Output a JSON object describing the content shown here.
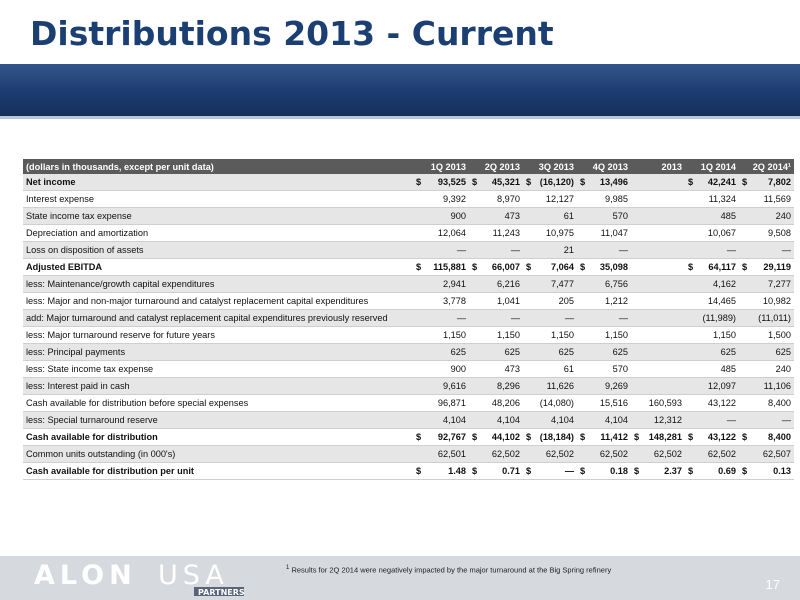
{
  "title": "Distributions 2013 - Current",
  "table": {
    "header": [
      "(dollars in thousands, except per unit data)",
      "1Q 2013",
      "2Q 2013",
      "3Q 2013",
      "4Q 2013",
      "2013",
      "1Q 2014",
      "2Q 2014¹"
    ],
    "rows": [
      {
        "label": "Net income",
        "bold": true,
        "dollar": true,
        "cells": [
          "93,525",
          "45,321",
          "(16,120)",
          "13,496",
          "",
          "42,241",
          "7,802"
        ]
      },
      {
        "label": "Interest expense",
        "cells": [
          "9,392",
          "8,970",
          "12,127",
          "9,985",
          "",
          "11,324",
          "11,569"
        ]
      },
      {
        "label": "State income tax expense",
        "cells": [
          "900",
          "473",
          "61",
          "570",
          "",
          "485",
          "240"
        ]
      },
      {
        "label": "Depreciation and amortization",
        "cells": [
          "12,064",
          "11,243",
          "10,975",
          "11,047",
          "",
          "10,067",
          "9,508"
        ]
      },
      {
        "label": "Loss on disposition of assets",
        "cells": [
          "—",
          "—",
          "21",
          "—",
          "",
          "—",
          "—"
        ]
      },
      {
        "label": "Adjusted EBITDA",
        "bold": true,
        "dollar": true,
        "cells": [
          "115,881",
          "66,007",
          "7,064",
          "35,098",
          "",
          "64,117",
          "29,119"
        ]
      },
      {
        "label": "less: Maintenance/growth capital expenditures",
        "cells": [
          "2,941",
          "6,216",
          "7,477",
          "6,756",
          "",
          "4,162",
          "7,277"
        ]
      },
      {
        "label": "less: Major and non-major turnaround and catalyst replacement capital expenditures",
        "cells": [
          "3,778",
          "1,041",
          "205",
          "1,212",
          "",
          "14,465",
          "10,982"
        ]
      },
      {
        "label": "add: Major turnaround and catalyst replacement capital expenditures previously reserved",
        "cells": [
          "—",
          "—",
          "—",
          "—",
          "",
          "(11,989)",
          "(11,011)"
        ]
      },
      {
        "label": "less: Major turnaround reserve for future years",
        "cells": [
          "1,150",
          "1,150",
          "1,150",
          "1,150",
          "",
          "1,150",
          "1,500"
        ]
      },
      {
        "label": "less: Principal payments",
        "cells": [
          "625",
          "625",
          "625",
          "625",
          "",
          "625",
          "625"
        ]
      },
      {
        "label": "less: State income tax expense",
        "cells": [
          "900",
          "473",
          "61",
          "570",
          "",
          "485",
          "240"
        ]
      },
      {
        "label": "less: Interest paid in cash",
        "cells": [
          "9,616",
          "8,296",
          "11,626",
          "9,269",
          "",
          "12,097",
          "11,106"
        ]
      },
      {
        "label": "Cash available for distribution before special expenses",
        "cells": [
          "96,871",
          "48,206",
          "(14,080)",
          "15,516",
          "160,593",
          "43,122",
          "8,400"
        ]
      },
      {
        "label": "less: Special turnaround reserve",
        "cells": [
          "4,104",
          "4,104",
          "4,104",
          "4,104",
          "12,312",
          "—",
          "—"
        ]
      },
      {
        "label": "Cash available for distribution",
        "bold": true,
        "dollar": true,
        "cells": [
          "92,767",
          "44,102",
          "(18,184)",
          "11,412",
          "148,281",
          "43,122",
          "8,400"
        ]
      },
      {
        "label": "Common units outstanding (in 000's)",
        "cells": [
          "62,501",
          "62,502",
          "62,502",
          "62,502",
          "62,502",
          "62,502",
          "62,507"
        ]
      },
      {
        "label": "Cash available for distribution per unit",
        "bold": true,
        "dollar": true,
        "cells": [
          "1.48",
          "0.71",
          "—",
          "0.18",
          "2.37",
          "0.69",
          "0.13"
        ]
      }
    ]
  },
  "footer": {
    "logo_text_1": "ALON",
    "logo_text_2": "USA",
    "logo_sub": "PARTNERS",
    "footnote_mark": "1",
    "footnote": "Results for 2Q 2014 were negatively impacted by the major turnaround at the Big Spring refinery",
    "page_number": "17"
  }
}
